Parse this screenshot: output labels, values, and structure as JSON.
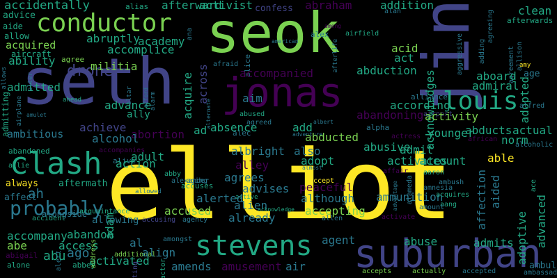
{
  "palette": {
    "yellow": "#fde725",
    "lime": "#7ad151",
    "green": "#22a884",
    "teal": "#2a788e",
    "blue": "#414487",
    "purple": "#440154"
  },
  "words": [
    {
      "text": "elliot",
      "color": "yellow"
    },
    {
      "text": "seth",
      "color": "blue"
    },
    {
      "text": "seok",
      "color": "lime"
    },
    {
      "text": "jin",
      "color": "blue"
    },
    {
      "text": "jonas",
      "color": "purple"
    },
    {
      "text": "suburban",
      "color": "blue"
    },
    {
      "text": "stevens",
      "color": "green"
    },
    {
      "text": "conductor",
      "color": "lime"
    },
    {
      "text": "clash",
      "color": "green"
    },
    {
      "text": "louis",
      "color": "green"
    },
    {
      "text": "probably",
      "color": "teal"
    },
    {
      "text": "drone",
      "color": "blue"
    },
    {
      "text": "accidentally",
      "color": "green"
    },
    {
      "text": "advice",
      "color": "green"
    },
    {
      "text": "aide",
      "color": "green"
    },
    {
      "text": "allow",
      "color": "green"
    },
    {
      "text": "acquired",
      "color": "lime"
    },
    {
      "text": "aircraft",
      "color": "green"
    },
    {
      "text": "agree",
      "color": "lime"
    },
    {
      "text": "ability",
      "color": "green"
    },
    {
      "text": "admitted",
      "color": "green"
    },
    {
      "text": "admitting",
      "color": "green"
    },
    {
      "text": "allows",
      "color": "teal"
    },
    {
      "text": "alter",
      "color": "teal"
    },
    {
      "text": "airplane",
      "color": "teal"
    },
    {
      "text": "amulet",
      "color": "teal"
    },
    {
      "text": "ambitious",
      "color": "teal"
    },
    {
      "text": "abandoned",
      "color": "green"
    },
    {
      "text": "allie",
      "color": "green"
    },
    {
      "text": "always",
      "color": "yellow"
    },
    {
      "text": "aftermath",
      "color": "green"
    },
    {
      "text": "affect",
      "color": "teal"
    },
    {
      "text": "ah",
      "color": "teal"
    },
    {
      "text": "accident",
      "color": "green"
    },
    {
      "text": "alongside",
      "color": "teal"
    },
    {
      "text": "accompany",
      "color": "green"
    },
    {
      "text": "abandon",
      "color": "green"
    },
    {
      "text": "abe",
      "color": "lime"
    },
    {
      "text": "access",
      "color": "green"
    },
    {
      "text": "abu",
      "color": "green"
    },
    {
      "text": "abigail",
      "color": "purple"
    },
    {
      "text": "alone",
      "color": "green"
    },
    {
      "text": "ago",
      "color": "teal"
    },
    {
      "text": "activated",
      "color": "green"
    },
    {
      "text": "abbey",
      "color": "green"
    },
    {
      "text": "alias",
      "color": "green"
    },
    {
      "text": "afterward",
      "color": "green"
    },
    {
      "text": "activist",
      "color": "green"
    },
    {
      "text": "confess",
      "color": "blue"
    },
    {
      "text": "abraham",
      "color": "purple"
    },
    {
      "text": "addition",
      "color": "green"
    },
    {
      "text": "clean",
      "color": "green"
    },
    {
      "text": "afterwards",
      "color": "green"
    },
    {
      "text": "agreeing",
      "color": "teal"
    },
    {
      "text": "alan",
      "color": "teal"
    },
    {
      "text": "among",
      "color": "purple"
    },
    {
      "text": "alex",
      "color": "teal"
    },
    {
      "text": "afterlife",
      "color": "teal"
    },
    {
      "text": "airfield",
      "color": "green"
    },
    {
      "text": "agreement",
      "color": "teal"
    },
    {
      "text": "allison",
      "color": "teal"
    },
    {
      "text": "adding",
      "color": "teal"
    },
    {
      "text": "aggressive",
      "color": "teal"
    },
    {
      "text": "american",
      "color": "teal"
    },
    {
      "text": "alice",
      "color": "teal"
    },
    {
      "text": "ana",
      "color": "teal"
    },
    {
      "text": "abruptly",
      "color": "green"
    },
    {
      "text": "academy",
      "color": "green"
    },
    {
      "text": "accomplice",
      "color": "green"
    },
    {
      "text": "militia",
      "color": "lime"
    },
    {
      "text": "across",
      "color": "blue"
    },
    {
      "text": "acid",
      "color": "lime"
    },
    {
      "text": "act",
      "color": "green"
    },
    {
      "text": "abduction",
      "color": "green"
    },
    {
      "text": "acknowledges",
      "color": "green"
    },
    {
      "text": "amy",
      "color": "yellow"
    },
    {
      "text": "aboard",
      "color": "green"
    },
    {
      "text": "age",
      "color": "teal"
    },
    {
      "text": "admiral",
      "color": "green"
    },
    {
      "text": "adopted",
      "color": "green"
    },
    {
      "text": "alliance",
      "color": "teal"
    },
    {
      "text": "airport",
      "color": "blue"
    },
    {
      "text": "alfred",
      "color": "teal"
    },
    {
      "text": "afraid",
      "color": "teal"
    },
    {
      "text": "accompanied",
      "color": "purple"
    },
    {
      "text": "advance",
      "color": "green"
    },
    {
      "text": "ally",
      "color": "green"
    },
    {
      "text": "achieve",
      "color": "blue"
    },
    {
      "text": "abortion",
      "color": "purple"
    },
    {
      "text": "ad",
      "color": "green"
    },
    {
      "text": "absence",
      "color": "green"
    },
    {
      "text": "add",
      "color": "green"
    },
    {
      "text": "acquire",
      "color": "green"
    },
    {
      "text": "aim",
      "color": "teal"
    },
    {
      "text": "abandoning",
      "color": "purple"
    },
    {
      "text": "activity",
      "color": "lime"
    },
    {
      "text": "according",
      "color": "green"
    },
    {
      "text": "younger",
      "color": "green"
    },
    {
      "text": "abducts",
      "color": "green"
    },
    {
      "text": "actual",
      "color": "green"
    },
    {
      "text": "abused",
      "color": "green"
    },
    {
      "text": "agreed",
      "color": "teal"
    },
    {
      "text": "albert",
      "color": "teal"
    },
    {
      "text": "alpha",
      "color": "teal"
    },
    {
      "text": "alcohol",
      "color": "teal"
    },
    {
      "text": "accompanies",
      "color": "purple"
    },
    {
      "text": "alive",
      "color": "teal"
    },
    {
      "text": "afford",
      "color": "teal"
    },
    {
      "text": "alarm",
      "color": "teal"
    },
    {
      "text": "altar",
      "color": "teal"
    },
    {
      "text": "alec",
      "color": "teal"
    },
    {
      "text": "adventure",
      "color": "teal"
    },
    {
      "text": "also",
      "color": "teal"
    },
    {
      "text": "abducted",
      "color": "lime"
    },
    {
      "text": "abusive",
      "color": "green"
    },
    {
      "text": "norm",
      "color": "green"
    },
    {
      "text": "actress",
      "color": "purple"
    },
    {
      "text": "affair",
      "color": "purple"
    },
    {
      "text": "african",
      "color": "purple"
    },
    {
      "text": "alcoholic",
      "color": "teal"
    },
    {
      "text": "albright",
      "color": "teal"
    },
    {
      "text": "admit",
      "color": "green"
    },
    {
      "text": "able",
      "color": "yellow"
    },
    {
      "text": "adopt",
      "color": "green"
    },
    {
      "text": "activates",
      "color": "green"
    },
    {
      "text": "account",
      "color": "green"
    },
    {
      "text": "aaron",
      "color": "green"
    },
    {
      "text": "alameda",
      "color": "teal"
    },
    {
      "text": "alley",
      "color": "purple"
    },
    {
      "text": "action",
      "color": "green"
    },
    {
      "text": "adult",
      "color": "green"
    },
    {
      "text": "abby",
      "color": "green"
    },
    {
      "text": "alexander",
      "color": "teal"
    },
    {
      "text": "agrees",
      "color": "teal"
    },
    {
      "text": "accept",
      "color": "yellow"
    },
    {
      "text": "almost",
      "color": "teal"
    },
    {
      "text": "advantage",
      "color": "teal"
    },
    {
      "text": "amnesia",
      "color": "teal"
    },
    {
      "text": "peaceful",
      "color": "purple"
    },
    {
      "text": "ambush",
      "color": "teal"
    },
    {
      "text": "accuses",
      "color": "green"
    },
    {
      "text": "aging",
      "color": "teal"
    },
    {
      "text": "advises",
      "color": "teal"
    },
    {
      "text": "allowed",
      "color": "teal"
    },
    {
      "text": "active",
      "color": "green"
    },
    {
      "text": "although",
      "color": "teal"
    },
    {
      "text": "ammunition",
      "color": "teal"
    },
    {
      "text": "acquires",
      "color": "green"
    },
    {
      "text": "aang",
      "color": "green"
    },
    {
      "text": "alerted",
      "color": "teal"
    },
    {
      "text": "alien",
      "color": "teal"
    },
    {
      "text": "adam",
      "color": "green"
    },
    {
      "text": "accused",
      "color": "lime"
    },
    {
      "text": "acknowledge",
      "color": "green"
    },
    {
      "text": "accepting",
      "color": "lime"
    },
    {
      "text": "amount",
      "color": "teal"
    },
    {
      "text": "accusing",
      "color": "blue"
    },
    {
      "text": "agency",
      "color": "teal"
    },
    {
      "text": "already",
      "color": "teal"
    },
    {
      "text": "allen",
      "color": "teal"
    },
    {
      "text": "activate",
      "color": "purple"
    },
    {
      "text": "affection",
      "color": "teal"
    },
    {
      "text": "aided",
      "color": "teal"
    },
    {
      "text": "adoptive",
      "color": "green"
    },
    {
      "text": "advanced",
      "color": "green"
    },
    {
      "text": "ace",
      "color": "green"
    },
    {
      "text": "acquaintance",
      "color": "green"
    },
    {
      "text": "allowing",
      "color": "teal"
    },
    {
      "text": "amongst",
      "color": "teal"
    },
    {
      "text": "al",
      "color": "teal"
    },
    {
      "text": "agent",
      "color": "teal"
    },
    {
      "text": "abuse",
      "color": "green"
    },
    {
      "text": "admits",
      "color": "green"
    },
    {
      "text": "address",
      "color": "lime"
    },
    {
      "text": "additional",
      "color": "lime"
    },
    {
      "text": "align",
      "color": "teal"
    },
    {
      "text": "alert",
      "color": "teal"
    },
    {
      "text": "acting",
      "color": "blue"
    },
    {
      "text": "actor",
      "color": "green"
    },
    {
      "text": "amends",
      "color": "teal"
    },
    {
      "text": "amusement",
      "color": "purple"
    },
    {
      "text": "air",
      "color": "teal"
    },
    {
      "text": "accepts",
      "color": "lime"
    },
    {
      "text": "actually",
      "color": "lime"
    },
    {
      "text": "accepted",
      "color": "teal"
    },
    {
      "text": "ambulance",
      "color": "teal"
    },
    {
      "text": "ambassador",
      "color": "teal"
    },
    {
      "text": "alternate",
      "color": "teal"
    },
    {
      "text": "ahead",
      "color": "green"
    },
    {
      "text": "arrows",
      "color": "purple"
    },
    {
      "text": "aged",
      "color": "teal"
    },
    {
      "text": "ambitious",
      "color": "purple"
    }
  ]
}
